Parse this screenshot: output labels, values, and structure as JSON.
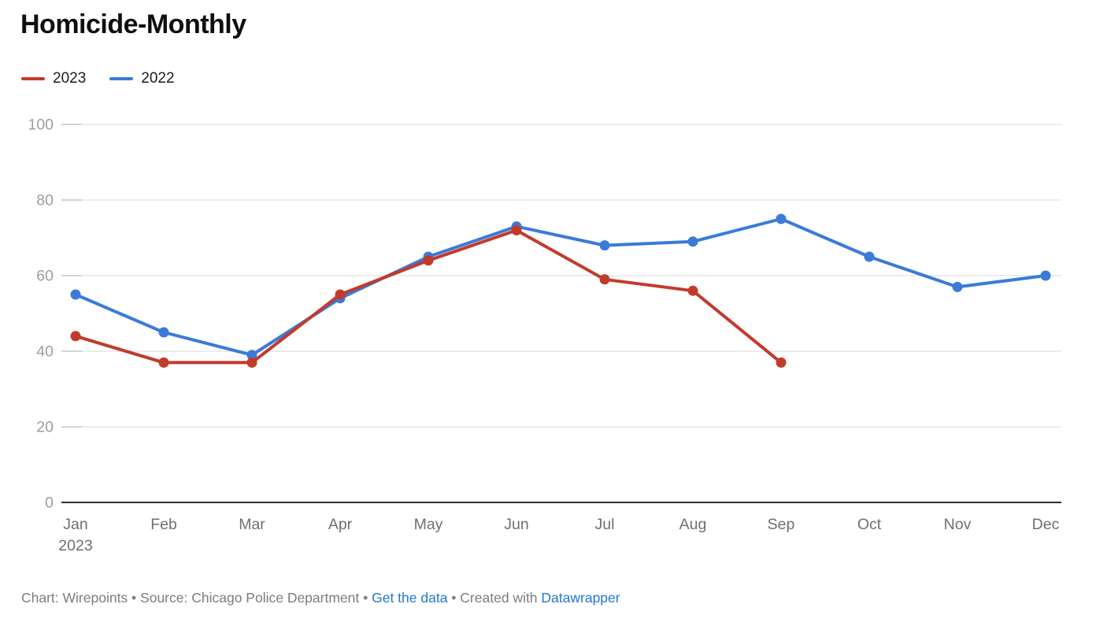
{
  "title": "Homicide-Monthly",
  "accent_colors": {
    "series_2023": "#c23a2c",
    "series_2022": "#3a7ad9",
    "link_blue": "#2178d4",
    "axis_line": "#2f2f2f",
    "gridline": "#e7e7e7",
    "grid_tick": "#c9c9c9",
    "y_label_gray": "#9d9d9d",
    "x_label_gray": "#6f6f6f"
  },
  "legend": {
    "items": [
      {
        "label": "2023",
        "color": "#c23a2c"
      },
      {
        "label": "2022",
        "color": "#3a7ad9"
      }
    ]
  },
  "chart_data": {
    "type": "line",
    "categories": [
      "Jan",
      "Feb",
      "Mar",
      "Apr",
      "May",
      "Jun",
      "Jul",
      "Aug",
      "Sep",
      "Oct",
      "Nov",
      "Dec"
    ],
    "first_category_year_label": "2023",
    "series": [
      {
        "name": "2022",
        "color": "#3a7ad9",
        "values": [
          55,
          45,
          39,
          54,
          65,
          73,
          68,
          69,
          75,
          65,
          57,
          60
        ]
      },
      {
        "name": "2023",
        "color": "#c23a2c",
        "values": [
          44,
          37,
          37,
          55,
          64,
          72,
          59,
          56,
          37
        ]
      }
    ],
    "title": "Homicide-Monthly",
    "xlabel": "",
    "ylabel": "",
    "ylim": [
      0,
      100
    ],
    "yticks": [
      0,
      20,
      40,
      60,
      80,
      100
    ],
    "grid": "horizontal",
    "legend_position": "top-left"
  },
  "footer": {
    "chart_credit": "Chart: Wirepoints",
    "sep1": " • ",
    "source_label": "Source: Chicago Police Department",
    "sep2": " • ",
    "get_data_link": "Get the data",
    "sep3": " • ",
    "created_with": "Created with ",
    "datawrapper_link": "Datawrapper"
  }
}
